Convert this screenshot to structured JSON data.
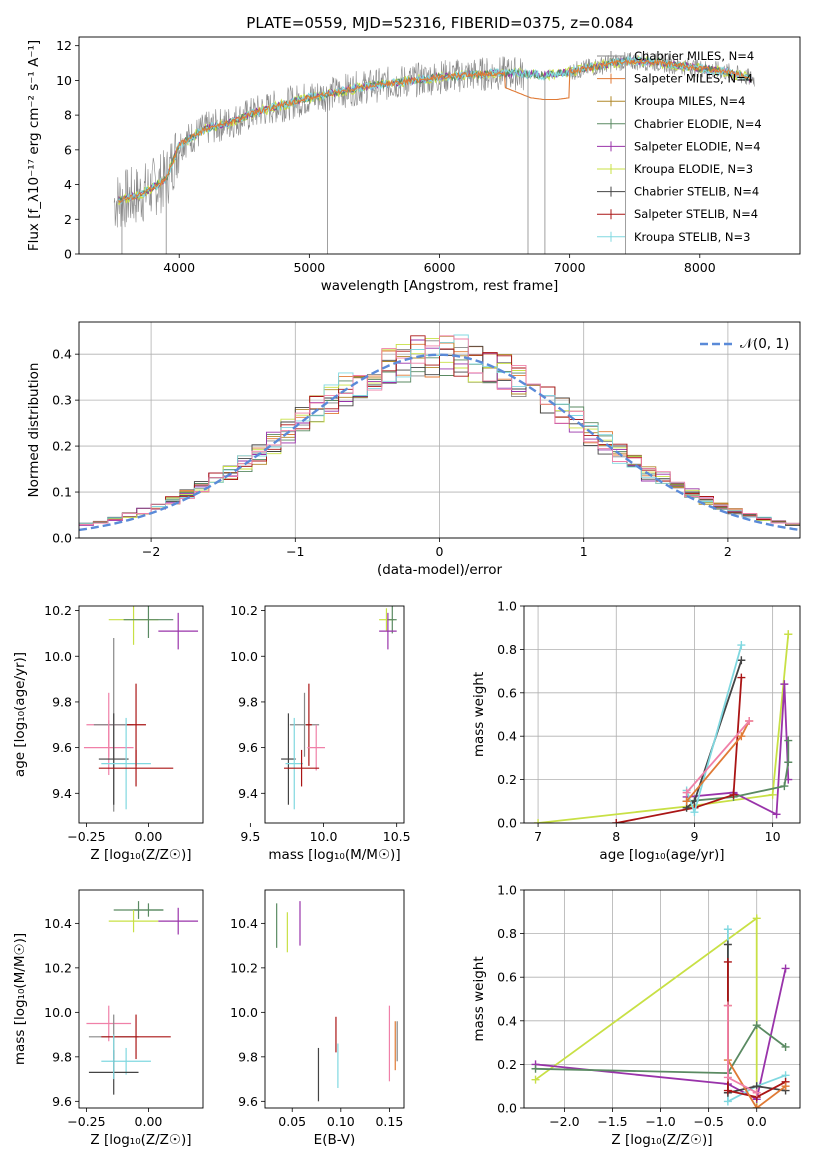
{
  "title": "PLATE=0559, MJD=52316, FIBERID=0375, z=0.084",
  "colors": {
    "chabrier_miles": "#888888",
    "salpeter_miles": "#e07a35",
    "kroupa_miles": "#b0882a",
    "chabrier_elodie": "#5a8a62",
    "salpeter_elodie": "#9933aa",
    "kroupa_elodie": "#c8e045",
    "chabrier_stelib": "#444444",
    "salpeter_stelib": "#aa1515",
    "kroupa_stelib": "#80d8e0",
    "pink": "#f080a8",
    "gaussian": "#5a8ad8"
  },
  "chart_data": [
    {
      "type": "line",
      "title": "PLATE=0559, MJD=52316, FIBERID=0375, z=0.084",
      "xlabel": "wavelength [Angstrom, rest frame]",
      "ylabel": "Flux [f_λ10⁻¹⁷ erg cm⁻² s⁻¹ A⁻¹]",
      "xlim": [
        3230,
        8770
      ],
      "ylim": [
        0,
        12.5
      ],
      "xticks": [
        "4000",
        "5000",
        "6000",
        "7000",
        "8000"
      ],
      "yticks": [
        "0",
        "2",
        "4",
        "6",
        "8",
        "10",
        "12"
      ],
      "legend": [
        "Chabrier MILES, N_SSP=4",
        "Salpeter MILES, N_SSP=4",
        "Kroupa MILES, N_SSP=4",
        "Chabrier ELODIE, N_SSP=4",
        "Salpeter ELODIE, N_SSP=4",
        "Kroupa ELODIE, N_SSP=3",
        "Chabrier STELIB, N_SSP=4",
        "Salpeter STELIB, N_SSP=4",
        "Kroupa STELIB, N_SSP=3"
      ],
      "continuum": {
        "x": [
          3500,
          3700,
          3900,
          4000,
          4200,
          4400,
          4600,
          4800,
          5000,
          5200,
          5400,
          5600,
          5800,
          6000,
          6200,
          6400,
          6600,
          6800,
          7000,
          7200,
          7400,
          7600,
          7800,
          8000,
          8200,
          8400
        ],
        "y": [
          3.0,
          3.4,
          4.3,
          6.3,
          7.2,
          7.6,
          8.2,
          8.6,
          9.0,
          9.3,
          9.6,
          9.8,
          10.0,
          10.2,
          10.3,
          10.4,
          10.4,
          10.3,
          10.5,
          10.8,
          11.1,
          11.1,
          10.9,
          10.7,
          10.5,
          10.1
        ]
      },
      "salpeter_miles_dip": {
        "x": [
          6500,
          6700,
          6800,
          6900,
          7000
        ],
        "y": [
          9.6,
          9.0,
          8.9,
          8.9,
          9.0
        ]
      }
    },
    {
      "type": "line",
      "xlabel": "(data-model)/error",
      "ylabel": "Normed distribution",
      "xlim": [
        -2.5,
        2.5
      ],
      "ylim": [
        0,
        0.47
      ],
      "xticks": [
        "−2",
        "−1",
        "0",
        "1",
        "2"
      ],
      "yticks": [
        "0.0",
        "0.1",
        "0.2",
        "0.3",
        "0.4"
      ],
      "legend": [
        "𝒩(0, 1)"
      ],
      "bin_width": 0.1,
      "gaussian": {
        "mu": 0,
        "sigma": 1
      }
    },
    {
      "type": "scatter",
      "xlabel": "Z [log₁₀(Z/Z☉)]",
      "ylabel": "age  [log₁₀(age/yr)]",
      "xlim": [
        -0.28,
        0.22
      ],
      "ylim": [
        9.27,
        10.22
      ],
      "xticks": [
        "−0.25",
        "0.00"
      ],
      "yticks": [
        "9.4",
        "9.6",
        "9.8",
        "10.0",
        "10.2"
      ],
      "points": [
        {
          "x": -0.06,
          "y": 10.16,
          "xerr": 0.1,
          "yerr": 0.11,
          "c": "kroupa_elodie"
        },
        {
          "x": 0.0,
          "y": 10.16,
          "xerr": 0.1,
          "yerr": 0.08,
          "c": "chabrier_elodie"
        },
        {
          "x": 0.12,
          "y": 10.11,
          "xerr": 0.08,
          "yerr": 0.08,
          "c": "salpeter_elodie"
        },
        {
          "x": -0.16,
          "y": 9.7,
          "xerr": 0.09,
          "yerr": 0.14,
          "c": "pink"
        },
        {
          "x": -0.14,
          "y": 9.7,
          "xerr": 0.08,
          "yerr": 0.38,
          "c": "chabrier_miles"
        },
        {
          "x": -0.05,
          "y": 9.7,
          "xerr": 0.04,
          "yerr": 0.18,
          "c": "salpeter_stelib"
        },
        {
          "x": -0.16,
          "y": 9.6,
          "xerr": 0.1,
          "yerr": 0.12,
          "c": "pink"
        },
        {
          "x": -0.14,
          "y": 9.55,
          "xerr": 0.06,
          "yerr": 0.2,
          "c": "chabrier_stelib"
        },
        {
          "x": -0.09,
          "y": 9.53,
          "xerr": 0.1,
          "yerr": 0.2,
          "c": "kroupa_stelib"
        },
        {
          "x": -0.05,
          "y": 9.51,
          "xerr": 0.15,
          "yerr": 0.08,
          "c": "salpeter_stelib"
        }
      ]
    },
    {
      "type": "scatter",
      "xlabel": "mass [log₁₀(M/M☉)]",
      "xlim": [
        9.6,
        10.55
      ],
      "ylim": [
        9.27,
        10.22
      ],
      "xticks": [
        "9.5",
        "10.0",
        "10.5"
      ],
      "yticks": [
        "9.4",
        "9.6",
        "9.8",
        "10.0",
        "10.2"
      ],
      "points": [
        {
          "x": 10.43,
          "y": 10.16,
          "xerr": 0.05,
          "yerr": 0.05,
          "c": "kroupa_elodie"
        },
        {
          "x": 10.47,
          "y": 10.16,
          "xerr": 0.03,
          "yerr": 0.06,
          "c": "chabrier_elodie"
        },
        {
          "x": 10.44,
          "y": 10.11,
          "xerr": 0.06,
          "yerr": 0.08,
          "c": "salpeter_elodie"
        },
        {
          "x": 9.87,
          "y": 9.7,
          "xerr": 0.1,
          "yerr": 0.14,
          "c": "chabrier_miles"
        },
        {
          "x": 9.9,
          "y": 9.7,
          "xerr": 0.02,
          "yerr": 0.18,
          "c": "salpeter_stelib"
        },
        {
          "x": 9.95,
          "y": 9.6,
          "xerr": 0.06,
          "yerr": 0.1,
          "c": "pink"
        },
        {
          "x": 9.76,
          "y": 9.55,
          "xerr": 0.05,
          "yerr": 0.2,
          "c": "chabrier_stelib"
        },
        {
          "x": 9.8,
          "y": 9.53,
          "xerr": 0.06,
          "yerr": 0.2,
          "c": "kroupa_stelib"
        },
        {
          "x": 9.85,
          "y": 9.51,
          "xerr": 0.12,
          "yerr": 0.08,
          "c": "salpeter_stelib"
        }
      ]
    },
    {
      "type": "line",
      "xlabel": "age  [log₁₀(age/yr)]",
      "ylabel": "mass weight",
      "xlim": [
        6.82,
        10.35
      ],
      "ylim": [
        0,
        1
      ],
      "xticks": [
        "7",
        "8",
        "9",
        "10"
      ],
      "yticks": [
        "0.0",
        "0.2",
        "0.4",
        "0.6",
        "0.8",
        "1.0"
      ],
      "series": [
        {
          "c": "kroupa_elodie",
          "x": [
            7.0,
            9.0,
            10.0,
            10.2,
            10.2
          ],
          "y": [
            0.0,
            0.08,
            0.13,
            0.87,
            0.87
          ]
        },
        {
          "c": "salpeter_elodie",
          "x": [
            8.9,
            9.5,
            10.05,
            10.15,
            10.2
          ],
          "y": [
            0.12,
            0.14,
            0.04,
            0.64,
            0.2
          ]
        },
        {
          "c": "chabrier_elodie",
          "x": [
            8.9,
            9.5,
            10.15,
            10.2,
            10.2
          ],
          "y": [
            0.1,
            0.12,
            0.17,
            0.28,
            0.38
          ]
        },
        {
          "c": "salpeter_stelib",
          "x": [
            8.0,
            9.0,
            9.5,
            9.6
          ],
          "y": [
            0.0,
            0.07,
            0.13,
            0.67
          ]
        },
        {
          "c": "chabrier_stelib",
          "x": [
            8.9,
            9.0,
            9.6
          ],
          "y": [
            0.07,
            0.1,
            0.75
          ]
        },
        {
          "c": "kroupa_stelib",
          "x": [
            8.9,
            9.0,
            9.6
          ],
          "y": [
            0.15,
            0.05,
            0.82
          ]
        },
        {
          "c": "salpeter_miles",
          "x": [
            8.9,
            9.6,
            9.7
          ],
          "y": [
            0.1,
            0.4,
            0.47
          ]
        },
        {
          "c": "pink",
          "x": [
            8.9,
            9.7
          ],
          "y": [
            0.14,
            0.47
          ]
        }
      ]
    },
    {
      "type": "scatter",
      "xlabel": "Z [log₁₀(Z/Z☉)]",
      "ylabel": "mass [log₁₀(M/M☉)]",
      "xlim": [
        -0.28,
        0.22
      ],
      "ylim": [
        9.57,
        10.55
      ],
      "xticks": [
        "−0.25",
        "0.00"
      ],
      "yticks": [
        "9.6",
        "9.8",
        "10.0",
        "10.2",
        "10.4"
      ],
      "points": [
        {
          "x": -0.04,
          "y": 10.46,
          "xerr": 0.1,
          "yerr": 0.04,
          "c": "chabrier_elodie"
        },
        {
          "x": 0.0,
          "y": 10.46,
          "xerr": 0.06,
          "yerr": 0.03,
          "c": "chabrier_elodie"
        },
        {
          "x": -0.06,
          "y": 10.41,
          "xerr": 0.1,
          "yerr": 0.05,
          "c": "kroupa_elodie"
        },
        {
          "x": 0.12,
          "y": 10.41,
          "xerr": 0.08,
          "yerr": 0.06,
          "c": "salpeter_elodie"
        },
        {
          "x": -0.16,
          "y": 9.95,
          "xerr": 0.09,
          "yerr": 0.08,
          "c": "pink"
        },
        {
          "x": -0.14,
          "y": 9.89,
          "xerr": 0.1,
          "yerr": 0.1,
          "c": "chabrier_miles"
        },
        {
          "x": -0.05,
          "y": 9.89,
          "xerr": 0.14,
          "yerr": 0.1,
          "c": "salpeter_stelib"
        },
        {
          "x": -0.09,
          "y": 9.78,
          "xerr": 0.1,
          "yerr": 0.06,
          "c": "kroupa_stelib"
        },
        {
          "x": -0.14,
          "y": 9.73,
          "xerr": 0.1,
          "yerr": 0.1,
          "c": "chabrier_stelib"
        },
        {
          "x": -0.14,
          "y": 9.8,
          "xerr": 0.0,
          "yerr": 0.1,
          "c": "kroupa_stelib"
        }
      ]
    },
    {
      "type": "scatter",
      "xlabel": "E(B-V)",
      "xlim": [
        0.022,
        0.165
      ],
      "ylim": [
        9.57,
        10.55
      ],
      "xticks": [
        "0.05",
        "0.10",
        "0.15"
      ],
      "yticks": [
        "9.6",
        "9.8",
        "10.0",
        "10.2",
        "10.4"
      ],
      "points": [
        {
          "x": 0.034,
          "y": 10.39,
          "yerr": 0.1,
          "c": "chabrier_elodie"
        },
        {
          "x": 0.045,
          "y": 10.36,
          "yerr": 0.09,
          "c": "kroupa_elodie"
        },
        {
          "x": 0.058,
          "y": 10.4,
          "yerr": 0.1,
          "c": "salpeter_elodie"
        },
        {
          "x": 0.077,
          "y": 9.72,
          "yerr": 0.12,
          "c": "chabrier_stelib"
        },
        {
          "x": 0.095,
          "y": 9.9,
          "yerr": 0.08,
          "c": "salpeter_stelib"
        },
        {
          "x": 0.097,
          "y": 9.76,
          "yerr": 0.1,
          "c": "kroupa_stelib"
        },
        {
          "x": 0.15,
          "y": 9.86,
          "yerr": 0.17,
          "c": "pink"
        },
        {
          "x": 0.156,
          "y": 9.85,
          "yerr": 0.11,
          "c": "salpeter_miles"
        },
        {
          "x": 0.158,
          "y": 9.87,
          "yerr": 0.09,
          "c": "chabrier_miles"
        }
      ]
    },
    {
      "type": "line",
      "xlabel": "Z [log₁₀(Z/Z☉)]",
      "ylabel": "mass weight",
      "xlim": [
        -2.42,
        0.45
      ],
      "ylim": [
        0,
        1
      ],
      "xticks": [
        "−2.0",
        "−1.5",
        "−1.0",
        "−0.5",
        "0.0"
      ],
      "yticks": [
        "0.0",
        "0.2",
        "0.4",
        "0.6",
        "0.8",
        "1.0"
      ],
      "series": [
        {
          "c": "kroupa_elodie",
          "x": [
            -2.3,
            0.0,
            0.0
          ],
          "y": [
            0.13,
            0.87,
            0.0
          ]
        },
        {
          "c": "salpeter_elodie",
          "x": [
            -2.3,
            -0.3,
            0.0,
            0.3
          ],
          "y": [
            0.2,
            0.11,
            0.04,
            0.64
          ]
        },
        {
          "c": "chabrier_elodie",
          "x": [
            -2.3,
            -0.3,
            0.0,
            0.3
          ],
          "y": [
            0.18,
            0.16,
            0.38,
            0.28
          ]
        },
        {
          "c": "kroupa_stelib",
          "x": [
            -0.3,
            -0.3,
            0.0,
            0.3
          ],
          "y": [
            0.82,
            0.03,
            0.1,
            0.15
          ]
        },
        {
          "c": "chabrier_stelib",
          "x": [
            -0.3,
            -0.3,
            0.0,
            0.3
          ],
          "y": [
            0.75,
            0.07,
            0.1,
            0.08
          ]
        },
        {
          "c": "salpeter_stelib",
          "x": [
            -0.3,
            -0.3,
            0.0,
            0.3
          ],
          "y": [
            0.67,
            0.08,
            0.05,
            0.12
          ]
        },
        {
          "c": "salpeter_miles",
          "x": [
            -0.3,
            -0.3,
            0.0,
            0.3
          ],
          "y": [
            0.47,
            0.22,
            0.0,
            0.1
          ]
        },
        {
          "c": "pink",
          "x": [
            -0.3,
            -0.3,
            0.0
          ],
          "y": [
            0.47,
            0.14,
            0.07
          ]
        }
      ]
    }
  ]
}
